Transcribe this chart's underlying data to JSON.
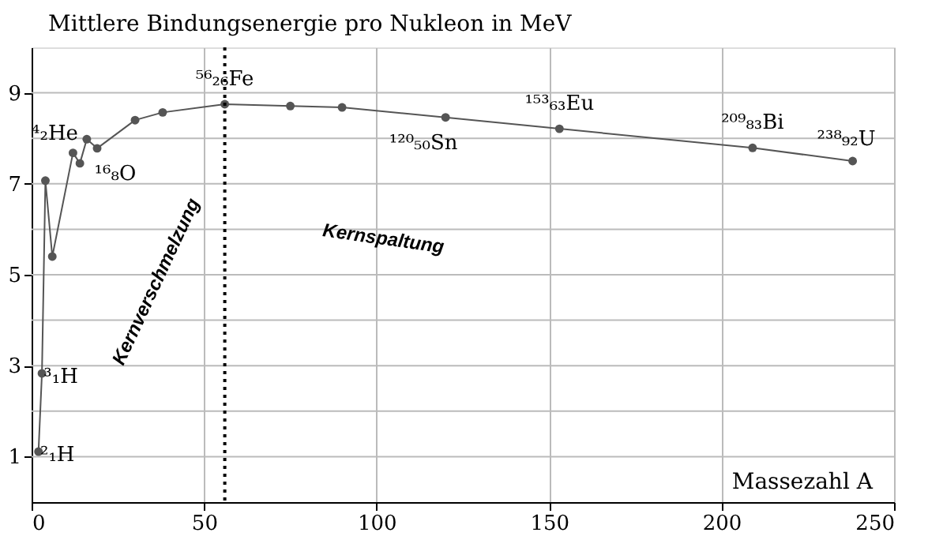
{
  "chart_data": {
    "type": "line",
    "ylabel": "Mittlere Bindungsenergie pro Nukleon in MeV",
    "xlabel": "Massezahl A",
    "series": [
      {
        "color": "#555555",
        "x": [
          2,
          3,
          4,
          6,
          12,
          14,
          16,
          19,
          30,
          38,
          56,
          75,
          90,
          120,
          153,
          209,
          238
        ],
        "values": [
          1.11,
          2.83,
          7.07,
          5.4,
          7.68,
          7.45,
          7.98,
          7.78,
          8.4,
          8.57,
          8.75,
          8.71,
          8.68,
          8.46,
          8.21,
          7.79,
          7.5
        ]
      }
    ],
    "xlim": [
      0,
      250
    ],
    "xticks": [
      0,
      50,
      100,
      150,
      200,
      250
    ],
    "ylim": [
      0,
      10
    ],
    "yticks": [
      1,
      {
        "value": 2,
        "label": null
      },
      3,
      {
        "value": 4,
        "label": null
      },
      5,
      {
        "value": 6,
        "label": null
      },
      7,
      {
        "value": 8,
        "label": null
      },
      9
    ],
    "grid": true,
    "marker": "circle",
    "line_style": "solid",
    "ref_lines": [
      {
        "axis": "x",
        "value": 56,
        "line_style": "dotted",
        "color": "#000000"
      }
    ],
    "annotations": [
      {
        "text": "²₁H",
        "x": 2,
        "y": 1.11
      },
      {
        "text": "³₁H",
        "x": 3,
        "y": 2.83
      },
      {
        "text": "⁴₂He",
        "x": 4,
        "y": 7.07
      },
      {
        "text": "¹⁶₈O",
        "x": 16,
        "y": 7.98
      },
      {
        "text": "⁵⁶₂₆Fe",
        "x": 56,
        "y": 8.75
      },
      {
        "text": "¹²⁰₅₀Sn",
        "x": 120,
        "y": 8.46
      },
      {
        "text": "¹⁵³₆₃Eu",
        "x": 153,
        "y": 8.21
      },
      {
        "text": "²⁰⁹₈₃Bi",
        "x": 209,
        "y": 7.79
      },
      {
        "text": "²³⁸₉₂U",
        "x": 238,
        "y": 7.5
      },
      "Kernverschmelzung",
      "Kernspaltung"
    ]
  }
}
